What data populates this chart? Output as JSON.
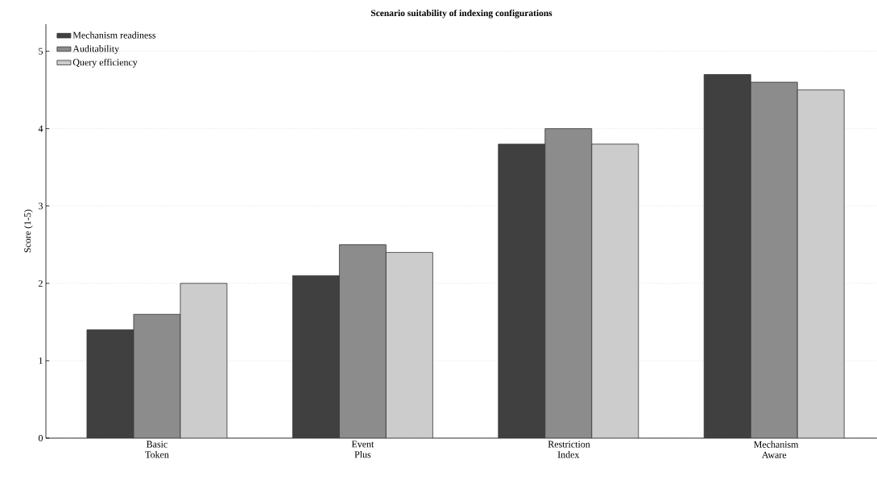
{
  "chart_data": {
    "type": "bar",
    "title": "Scenario suitability of indexing configurations",
    "ylabel": "Score (1-5)",
    "categories": [
      "Basic Token",
      "Event Plus",
      "Restriction Index",
      "Mechanism Aware"
    ],
    "series": [
      {
        "name": "Mechanism readiness",
        "color": "#404040",
        "values": [
          1.4,
          2.1,
          3.8,
          4.7
        ]
      },
      {
        "name": "Auditability",
        "color": "#8c8c8c",
        "values": [
          1.6,
          2.5,
          4.0,
          4.6
        ]
      },
      {
        "name": "Query efficiency",
        "color": "#cccccc",
        "values": [
          2.0,
          2.4,
          3.8,
          4.5
        ]
      }
    ],
    "ylim": [
      0,
      5.35
    ],
    "yticks": [
      0,
      1,
      2,
      3,
      4,
      5
    ],
    "grid": "y",
    "legend": "top left"
  }
}
